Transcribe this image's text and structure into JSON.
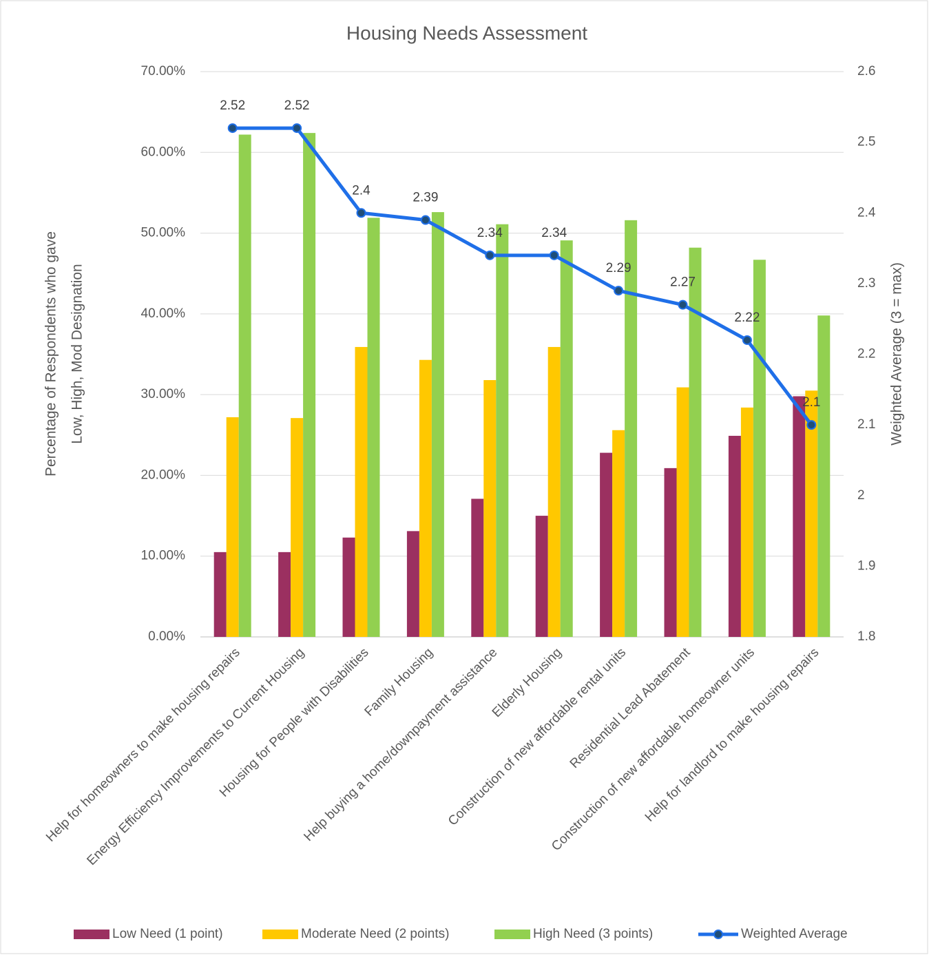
{
  "chart_data": {
    "type": "bar",
    "title": "Housing Needs Assessment",
    "ylabel": [
      "Percentage of Respondents who gave",
      "Low, High, Mod Designation"
    ],
    "y2label": "Weighted Average (3 = max)",
    "categories": [
      "Help for homeowners to make housing repairs",
      "Energy Efficiency Improvements to Current Housing",
      "Housing for People with Disabilities",
      "Family Housing",
      "Help buying a home/downpayment assistance",
      "Elderly Housing",
      "Construction of new affordable rental units",
      "Residential Lead Abatement",
      "Construction of new affordable homeowner units",
      "Help for landlord to make housing repairs"
    ],
    "series": [
      {
        "name": "Low Need (1 point)",
        "color": "#9b3060",
        "values": [
          10.5,
          10.5,
          12.3,
          13.1,
          17.1,
          15.0,
          22.8,
          20.9,
          24.9,
          29.8
        ]
      },
      {
        "name": "Moderate Need (2 points)",
        "color": "#ffc800",
        "values": [
          27.2,
          27.1,
          35.9,
          34.3,
          31.8,
          35.9,
          25.6,
          30.9,
          28.4,
          30.5
        ]
      },
      {
        "name": "High Need (3 points)",
        "color": "#92d050",
        "values": [
          62.2,
          62.4,
          51.9,
          52.6,
          51.1,
          49.1,
          51.6,
          48.2,
          46.7,
          39.8
        ]
      },
      {
        "name": "Weighted Average",
        "color": "#1f6fe8",
        "marker_color": "#1f4e79",
        "type": "line",
        "axis": "y2",
        "values": [
          2.52,
          2.52,
          2.4,
          2.39,
          2.34,
          2.34,
          2.29,
          2.27,
          2.22,
          2.1
        ]
      }
    ],
    "ylim": [
      0,
      70
    ],
    "yticks": [
      {
        "value": 0,
        "label": "0.00%"
      },
      {
        "value": 10,
        "label": "10.00%"
      },
      {
        "value": 20,
        "label": "20.00%"
      },
      {
        "value": 30,
        "label": "30.00%"
      },
      {
        "value": 40,
        "label": "40.00%"
      },
      {
        "value": 50,
        "label": "50.00%"
      },
      {
        "value": 60,
        "label": "60.00%"
      },
      {
        "value": 70,
        "label": "70.00%"
      }
    ],
    "y2lim": [
      1.8,
      2.6
    ],
    "y2ticks": [
      1.8,
      1.9,
      2,
      2.1,
      2.2,
      2.3,
      2.4,
      2.5,
      2.6
    ],
    "grid": true,
    "legend": "bottom"
  }
}
